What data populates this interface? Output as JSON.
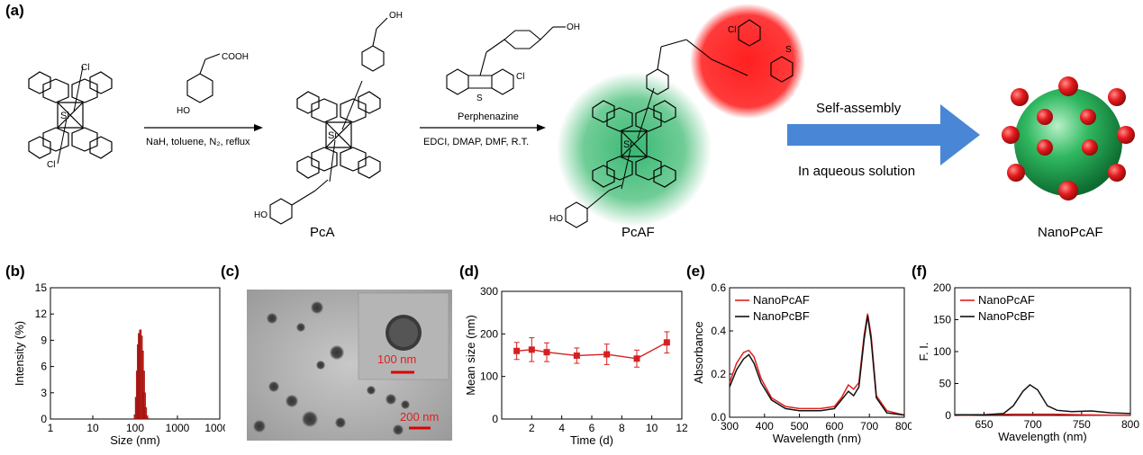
{
  "panels": {
    "a": "(a)",
    "b": "(b)",
    "c": "(c)",
    "d": "(d)",
    "e": "(e)",
    "f": "(f)"
  },
  "scheme": {
    "step1_reagents": "NaH, toluene, N₂, reflux",
    "step2_reagent_name": "Perphenazine",
    "step2_conditions": "EDCI, DMAP, DMF, R.T.",
    "arrow_top": "Self-assembly",
    "arrow_bottom": "In aqueous solution",
    "compounds": [
      "PcA",
      "PcAF",
      "NanoPcAF"
    ],
    "atom_labels": {
      "si": "Si",
      "n": "N",
      "cl": "Cl",
      "o": "O",
      "s": "S",
      "ho": "HO",
      "oh": "OH",
      "cooh": "COOH"
    },
    "colors": {
      "green": "#2db36b",
      "red": "#e31a1c",
      "arrow": "#4a86d6"
    }
  },
  "tem": {
    "scale_main": "200 nm",
    "scale_inset": "100 nm"
  },
  "chart_data": [
    {
      "id": "b",
      "type": "bar",
      "xlabel": "Size (nm)",
      "ylabel": "Intensity (%)",
      "xscale": "log",
      "xlim": [
        1,
        10000
      ],
      "ylim": [
        0,
        15
      ],
      "xticks": [
        "1",
        "10",
        "100",
        "1000",
        "10000"
      ],
      "yticks": [
        "0",
        "3",
        "6",
        "9",
        "12",
        "15"
      ],
      "x": [
        100,
        106,
        112,
        118,
        125,
        133,
        141,
        150,
        159,
        168,
        178,
        189,
        200
      ],
      "values": [
        0.5,
        2.5,
        5.5,
        8.5,
        9.8,
        10.2,
        9.5,
        7.8,
        5.5,
        3.0,
        1.3,
        0.4,
        0.1
      ],
      "color": "#c0201a"
    },
    {
      "id": "d",
      "type": "line",
      "xlabel": "Time (d)",
      "ylabel": "Mean size (nm)",
      "xlim": [
        0,
        12
      ],
      "ylim": [
        0,
        300
      ],
      "xticks": [
        "2",
        "4",
        "6",
        "8",
        "10",
        "12"
      ],
      "yticks": [
        "0",
        "100",
        "200",
        "300"
      ],
      "x": [
        1,
        2,
        3,
        5,
        7,
        9,
        11
      ],
      "values": [
        160,
        163,
        157,
        149,
        152,
        142,
        180
      ],
      "errors": [
        20,
        28,
        22,
        18,
        24,
        20,
        25
      ],
      "color": "#d62020"
    },
    {
      "id": "e",
      "type": "line",
      "xlabel": "Wavelength (nm)",
      "ylabel": "Absorbance",
      "xlim": [
        300,
        800
      ],
      "ylim": [
        0,
        0.6
      ],
      "xticks": [
        "300",
        "400",
        "500",
        "600",
        "700",
        "800"
      ],
      "yticks": [
        "0.0",
        "0.2",
        "0.4",
        "0.6"
      ],
      "legend_position": "top-left",
      "series": [
        {
          "name": "NanoPcAF",
          "color": "#e02020",
          "x": [
            300,
            320,
            340,
            355,
            370,
            390,
            420,
            460,
            500,
            560,
            600,
            620,
            640,
            655,
            670,
            685,
            695,
            705,
            720,
            750,
            800
          ],
          "values": [
            0.16,
            0.25,
            0.3,
            0.31,
            0.28,
            0.18,
            0.09,
            0.05,
            0.04,
            0.04,
            0.05,
            0.09,
            0.15,
            0.13,
            0.16,
            0.38,
            0.48,
            0.38,
            0.1,
            0.03,
            0.01
          ]
        },
        {
          "name": "NanoPcBF",
          "color": "#111111",
          "x": [
            300,
            320,
            340,
            355,
            370,
            390,
            420,
            460,
            500,
            560,
            600,
            620,
            640,
            655,
            670,
            685,
            695,
            705,
            720,
            750,
            800
          ],
          "values": [
            0.14,
            0.22,
            0.27,
            0.29,
            0.25,
            0.16,
            0.08,
            0.04,
            0.03,
            0.03,
            0.04,
            0.08,
            0.12,
            0.1,
            0.14,
            0.36,
            0.47,
            0.36,
            0.09,
            0.02,
            0.01
          ]
        }
      ]
    },
    {
      "id": "f",
      "type": "line",
      "xlabel": "Wavelength (nm)",
      "ylabel": "F. I.",
      "xlim": [
        620,
        800
      ],
      "ylim": [
        0,
        200
      ],
      "xticks": [
        "650",
        "700",
        "750",
        "800"
      ],
      "yticks": [
        "0",
        "50",
        "100",
        "150",
        "200"
      ],
      "legend_position": "top-left",
      "series": [
        {
          "name": "NanoPcAF",
          "color": "#e02020",
          "x": [
            620,
            650,
            680,
            700,
            720,
            750,
            800
          ],
          "values": [
            0,
            1,
            2,
            2,
            2,
            1,
            0
          ]
        },
        {
          "name": "NanoPcBF",
          "color": "#111111",
          "x": [
            620,
            650,
            670,
            680,
            690,
            697,
            705,
            715,
            725,
            740,
            760,
            780,
            800
          ],
          "values": [
            1,
            1,
            3,
            15,
            38,
            48,
            40,
            15,
            8,
            6,
            7,
            4,
            3
          ]
        }
      ]
    }
  ]
}
